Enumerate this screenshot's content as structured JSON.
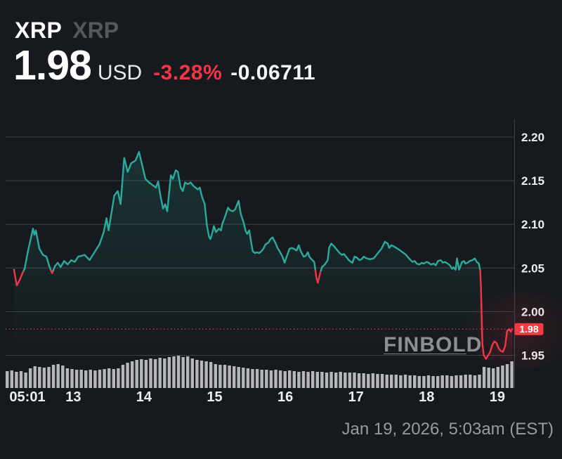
{
  "header": {
    "symbol": "XRP",
    "symbol_secondary": "XRP",
    "price": "1.98",
    "currency": "USD",
    "change_percent": "-3.28%",
    "change_absolute": "-0.06711"
  },
  "watermark": "FINBOLD",
  "footer": {
    "timestamp": "Jan 19, 2026, 5:03am (EST)"
  },
  "colors": {
    "background": "#16191d",
    "up": "#2bab9e",
    "down": "#f23645",
    "badge": "#f33b46",
    "badge_text": "#ffffff",
    "grid": "#3e434a",
    "axis_text": "#eceff2",
    "volume": "#c6c9cd",
    "watermark": "#8d9094",
    "watermark_rule": "#7c7f83",
    "muted_text": "#989ca1"
  },
  "chart_data": {
    "type": "line",
    "title": "XRP/USD 7-day price chart",
    "symbol": "XRP",
    "currency": "USD",
    "current_price": 1.98,
    "current_price_label": "1.98",
    "prev_close": 2.04711,
    "change_percent": -3.28,
    "change_absolute": -0.06711,
    "grid": true,
    "legend": false,
    "ylim": [
      1.948,
      2.22
    ],
    "xlim": [
      12.042,
      19.25
    ],
    "y_ticks": [
      {
        "label": "2.20",
        "value": 2.2
      },
      {
        "label": "2.15",
        "value": 2.15
      },
      {
        "label": "2.10",
        "value": 2.1
      },
      {
        "label": "2.05",
        "value": 2.05
      },
      {
        "label": "2.00",
        "value": 2.0
      },
      {
        "label": "1.95",
        "value": 1.95
      }
    ],
    "x_ticks": [
      {
        "label": "05:01",
        "t": 12.35
      },
      {
        "label": "13",
        "t": 13
      },
      {
        "label": "14",
        "t": 14
      },
      {
        "label": "15",
        "t": 15
      },
      {
        "label": "16",
        "t": 16
      },
      {
        "label": "17",
        "t": 17
      },
      {
        "label": "18",
        "t": 18
      },
      {
        "label": "19",
        "t": 19
      }
    ],
    "points": [
      [
        12.16,
        2.048
      ],
      [
        12.2,
        2.03
      ],
      [
        12.24,
        2.036
      ],
      [
        12.28,
        2.044
      ],
      [
        12.31,
        2.049
      ],
      [
        12.36,
        2.07
      ],
      [
        12.43,
        2.095
      ],
      [
        12.45,
        2.088
      ],
      [
        12.47,
        2.093
      ],
      [
        12.52,
        2.072
      ],
      [
        12.57,
        2.065
      ],
      [
        12.62,
        2.063
      ],
      [
        12.66,
        2.052
      ],
      [
        12.7,
        2.044
      ],
      [
        12.74,
        2.052
      ],
      [
        12.78,
        2.056
      ],
      [
        12.82,
        2.051
      ],
      [
        12.87,
        2.058
      ],
      [
        12.92,
        2.054
      ],
      [
        12.97,
        2.059
      ],
      [
        13.02,
        2.057
      ],
      [
        13.07,
        2.063
      ],
      [
        13.12,
        2.064
      ],
      [
        13.16,
        2.065
      ],
      [
        13.23,
        2.059
      ],
      [
        13.3,
        2.068
      ],
      [
        13.37,
        2.077
      ],
      [
        13.43,
        2.091
      ],
      [
        13.47,
        2.107
      ],
      [
        13.5,
        2.093
      ],
      [
        13.58,
        2.133
      ],
      [
        13.63,
        2.138
      ],
      [
        13.67,
        2.123
      ],
      [
        13.72,
        2.176
      ],
      [
        13.77,
        2.16
      ],
      [
        13.82,
        2.17
      ],
      [
        13.88,
        2.173
      ],
      [
        13.93,
        2.183
      ],
      [
        13.98,
        2.166
      ],
      [
        14.02,
        2.152
      ],
      [
        14.07,
        2.148
      ],
      [
        14.12,
        2.145
      ],
      [
        14.17,
        2.142
      ],
      [
        14.2,
        2.149
      ],
      [
        14.23,
        2.134
      ],
      [
        14.27,
        2.118
      ],
      [
        14.3,
        2.123
      ],
      [
        14.33,
        2.115
      ],
      [
        14.38,
        2.156
      ],
      [
        14.41,
        2.152
      ],
      [
        14.45,
        2.162
      ],
      [
        14.48,
        2.16
      ],
      [
        14.52,
        2.142
      ],
      [
        14.55,
        2.138
      ],
      [
        14.58,
        2.148
      ],
      [
        14.62,
        2.146
      ],
      [
        14.66,
        2.148
      ],
      [
        14.7,
        2.144
      ],
      [
        14.73,
        2.142
      ],
      [
        14.76,
        2.14
      ],
      [
        14.79,
        2.142
      ],
      [
        14.82,
        2.132
      ],
      [
        14.86,
        2.123
      ],
      [
        14.89,
        2.099
      ],
      [
        14.92,
        2.086
      ],
      [
        14.94,
        2.083
      ],
      [
        14.97,
        2.091
      ],
      [
        14.99,
        2.098
      ],
      [
        15.02,
        2.091
      ],
      [
        15.06,
        2.095
      ],
      [
        15.09,
        2.093
      ],
      [
        15.11,
        2.101
      ],
      [
        15.14,
        2.107
      ],
      [
        15.19,
        2.119
      ],
      [
        15.22,
        2.116
      ],
      [
        15.26,
        2.115
      ],
      [
        15.29,
        2.117
      ],
      [
        15.34,
        2.127
      ],
      [
        15.37,
        2.112
      ],
      [
        15.41,
        2.102
      ],
      [
        15.44,
        2.092
      ],
      [
        15.46,
        2.089
      ],
      [
        15.49,
        2.093
      ],
      [
        15.52,
        2.078
      ],
      [
        15.54,
        2.069
      ],
      [
        15.57,
        2.067
      ],
      [
        15.6,
        2.068
      ],
      [
        15.63,
        2.067
      ],
      [
        15.66,
        2.069
      ],
      [
        15.69,
        2.072
      ],
      [
        15.72,
        2.077
      ],
      [
        15.76,
        2.079
      ],
      [
        15.79,
        2.083
      ],
      [
        15.82,
        2.085
      ],
      [
        15.86,
        2.079
      ],
      [
        15.89,
        2.073
      ],
      [
        15.92,
        2.069
      ],
      [
        15.96,
        2.063
      ],
      [
        15.99,
        2.056
      ],
      [
        16.02,
        2.063
      ],
      [
        16.06,
        2.072
      ],
      [
        16.09,
        2.073
      ],
      [
        16.12,
        2.072
      ],
      [
        16.16,
        2.07
      ],
      [
        16.19,
        2.076
      ],
      [
        16.22,
        2.069
      ],
      [
        16.26,
        2.063
      ],
      [
        16.29,
        2.064
      ],
      [
        16.32,
        2.068
      ],
      [
        16.34,
        2.063
      ],
      [
        16.37,
        2.06
      ],
      [
        16.41,
        2.057
      ],
      [
        16.44,
        2.039
      ],
      [
        16.46,
        2.033
      ],
      [
        16.49,
        2.043
      ],
      [
        16.52,
        2.051
      ],
      [
        16.56,
        2.054
      ],
      [
        16.6,
        2.059
      ],
      [
        16.62,
        2.073
      ],
      [
        16.65,
        2.078
      ],
      [
        16.69,
        2.075
      ],
      [
        16.73,
        2.071
      ],
      [
        16.76,
        2.068
      ],
      [
        16.8,
        2.065
      ],
      [
        16.83,
        2.066
      ],
      [
        16.86,
        2.063
      ],
      [
        16.9,
        2.059
      ],
      [
        16.93,
        2.057
      ],
      [
        16.95,
        2.056
      ],
      [
        16.98,
        2.063
      ],
      [
        17.01,
        2.062
      ],
      [
        17.05,
        2.059
      ],
      [
        17.08,
        2.06
      ],
      [
        17.11,
        2.063
      ],
      [
        17.15,
        2.061
      ],
      [
        17.2,
        2.06
      ],
      [
        17.25,
        2.061
      ],
      [
        17.3,
        2.066
      ],
      [
        17.36,
        2.072
      ],
      [
        17.41,
        2.08
      ],
      [
        17.45,
        2.078
      ],
      [
        17.47,
        2.073
      ],
      [
        17.5,
        2.076
      ],
      [
        17.53,
        2.075
      ],
      [
        17.57,
        2.073
      ],
      [
        17.61,
        2.071
      ],
      [
        17.66,
        2.068
      ],
      [
        17.71,
        2.065
      ],
      [
        17.75,
        2.061
      ],
      [
        17.8,
        2.057
      ],
      [
        17.83,
        2.058
      ],
      [
        17.86,
        2.055
      ],
      [
        17.9,
        2.054
      ],
      [
        17.93,
        2.056
      ],
      [
        17.96,
        2.055
      ],
      [
        18.0,
        2.057
      ],
      [
        18.03,
        2.056
      ],
      [
        18.06,
        2.054
      ],
      [
        18.1,
        2.055
      ],
      [
        18.13,
        2.053
      ],
      [
        18.16,
        2.058
      ],
      [
        18.2,
        2.059
      ],
      [
        18.23,
        2.056
      ],
      [
        18.26,
        2.057
      ],
      [
        18.3,
        2.055
      ],
      [
        18.33,
        2.053
      ],
      [
        18.36,
        2.049
      ],
      [
        18.38,
        2.051
      ],
      [
        18.41,
        2.048
      ],
      [
        18.43,
        2.061
      ],
      [
        18.46,
        2.048
      ],
      [
        18.5,
        2.057
      ],
      [
        18.53,
        2.058
      ],
      [
        18.55,
        2.055
      ],
      [
        18.58,
        2.056
      ],
      [
        18.61,
        2.058
      ],
      [
        18.65,
        2.059
      ],
      [
        18.68,
        2.061
      ],
      [
        18.71,
        2.057
      ],
      [
        18.74,
        2.055
      ],
      [
        18.76,
        2.046
      ],
      [
        18.77,
        2.027
      ],
      [
        18.78,
        1.995
      ],
      [
        18.79,
        1.963
      ],
      [
        18.81,
        1.95
      ],
      [
        18.84,
        1.946
      ],
      [
        18.87,
        1.95
      ],
      [
        18.9,
        1.954
      ],
      [
        18.93,
        1.962
      ],
      [
        18.96,
        1.966
      ],
      [
        18.99,
        1.964
      ],
      [
        19.02,
        1.958
      ],
      [
        19.05,
        1.955
      ],
      [
        19.08,
        1.954
      ],
      [
        19.11,
        1.96
      ],
      [
        19.14,
        1.978
      ],
      [
        19.17,
        1.98
      ],
      [
        19.19,
        1.977
      ],
      [
        19.21,
        1.98
      ]
    ],
    "volume_bars": [
      24,
      25,
      23,
      24,
      22,
      28,
      31,
      30,
      29,
      30,
      33,
      34,
      32,
      28,
      27,
      26,
      26,
      25,
      26,
      25,
      26,
      27,
      28,
      27,
      28,
      33,
      36,
      38,
      40,
      41,
      40,
      42,
      41,
      43,
      42,
      44,
      45,
      46,
      44,
      45,
      42,
      40,
      39,
      38,
      37,
      34,
      33,
      33,
      32,
      31,
      30,
      29,
      28,
      27,
      27,
      26,
      26,
      25,
      26,
      25,
      24,
      25,
      24,
      23,
      24,
      23,
      24,
      23,
      23,
      22,
      23,
      22,
      23,
      22,
      22,
      22,
      21,
      21,
      20,
      21,
      20,
      20,
      19,
      19,
      19,
      18,
      19,
      18,
      18,
      17,
      17,
      18,
      17,
      17,
      18,
      18,
      17,
      18,
      18,
      19,
      19,
      18,
      19,
      30,
      29,
      28,
      30,
      32,
      34,
      38
    ]
  }
}
